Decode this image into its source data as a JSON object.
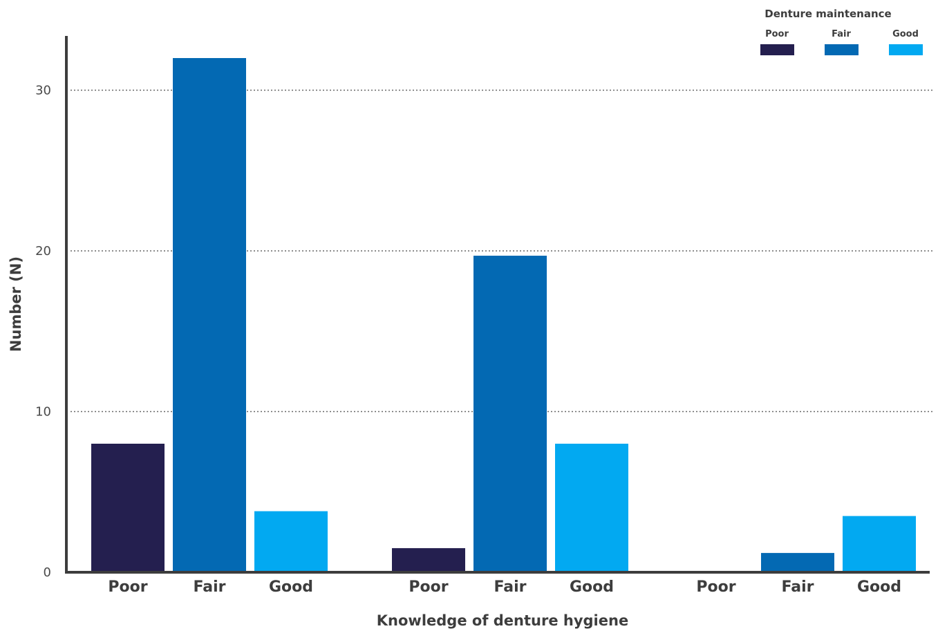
{
  "chart_data": {
    "type": "bar",
    "xlabel": "Knowledge of denture hygiene",
    "ylabel": "Number (N)",
    "ylim": [
      0,
      32
    ],
    "yticks": [
      0,
      10,
      20,
      30
    ],
    "grid": "horizontal dotted",
    "groups": [
      "Poor",
      "Fair",
      "Good"
    ],
    "categories": [
      "Poor",
      "Fair",
      "Good"
    ],
    "legend": {
      "title": "Denture maintenance",
      "placement": "top-right"
    },
    "series": [
      {
        "name": "Poor",
        "color": "#241f4f",
        "values": [
          8,
          1.5,
          0
        ]
      },
      {
        "name": "Fair",
        "color": "#0369b3",
        "values": [
          32,
          19.7,
          1.2
        ]
      },
      {
        "name": "Good",
        "color": "#02a9f1",
        "values": [
          3.8,
          8,
          3.5
        ]
      }
    ],
    "colors": {
      "axis": "#3d3d3d",
      "grid": "#666666",
      "text": "#3d3d3d"
    }
  }
}
